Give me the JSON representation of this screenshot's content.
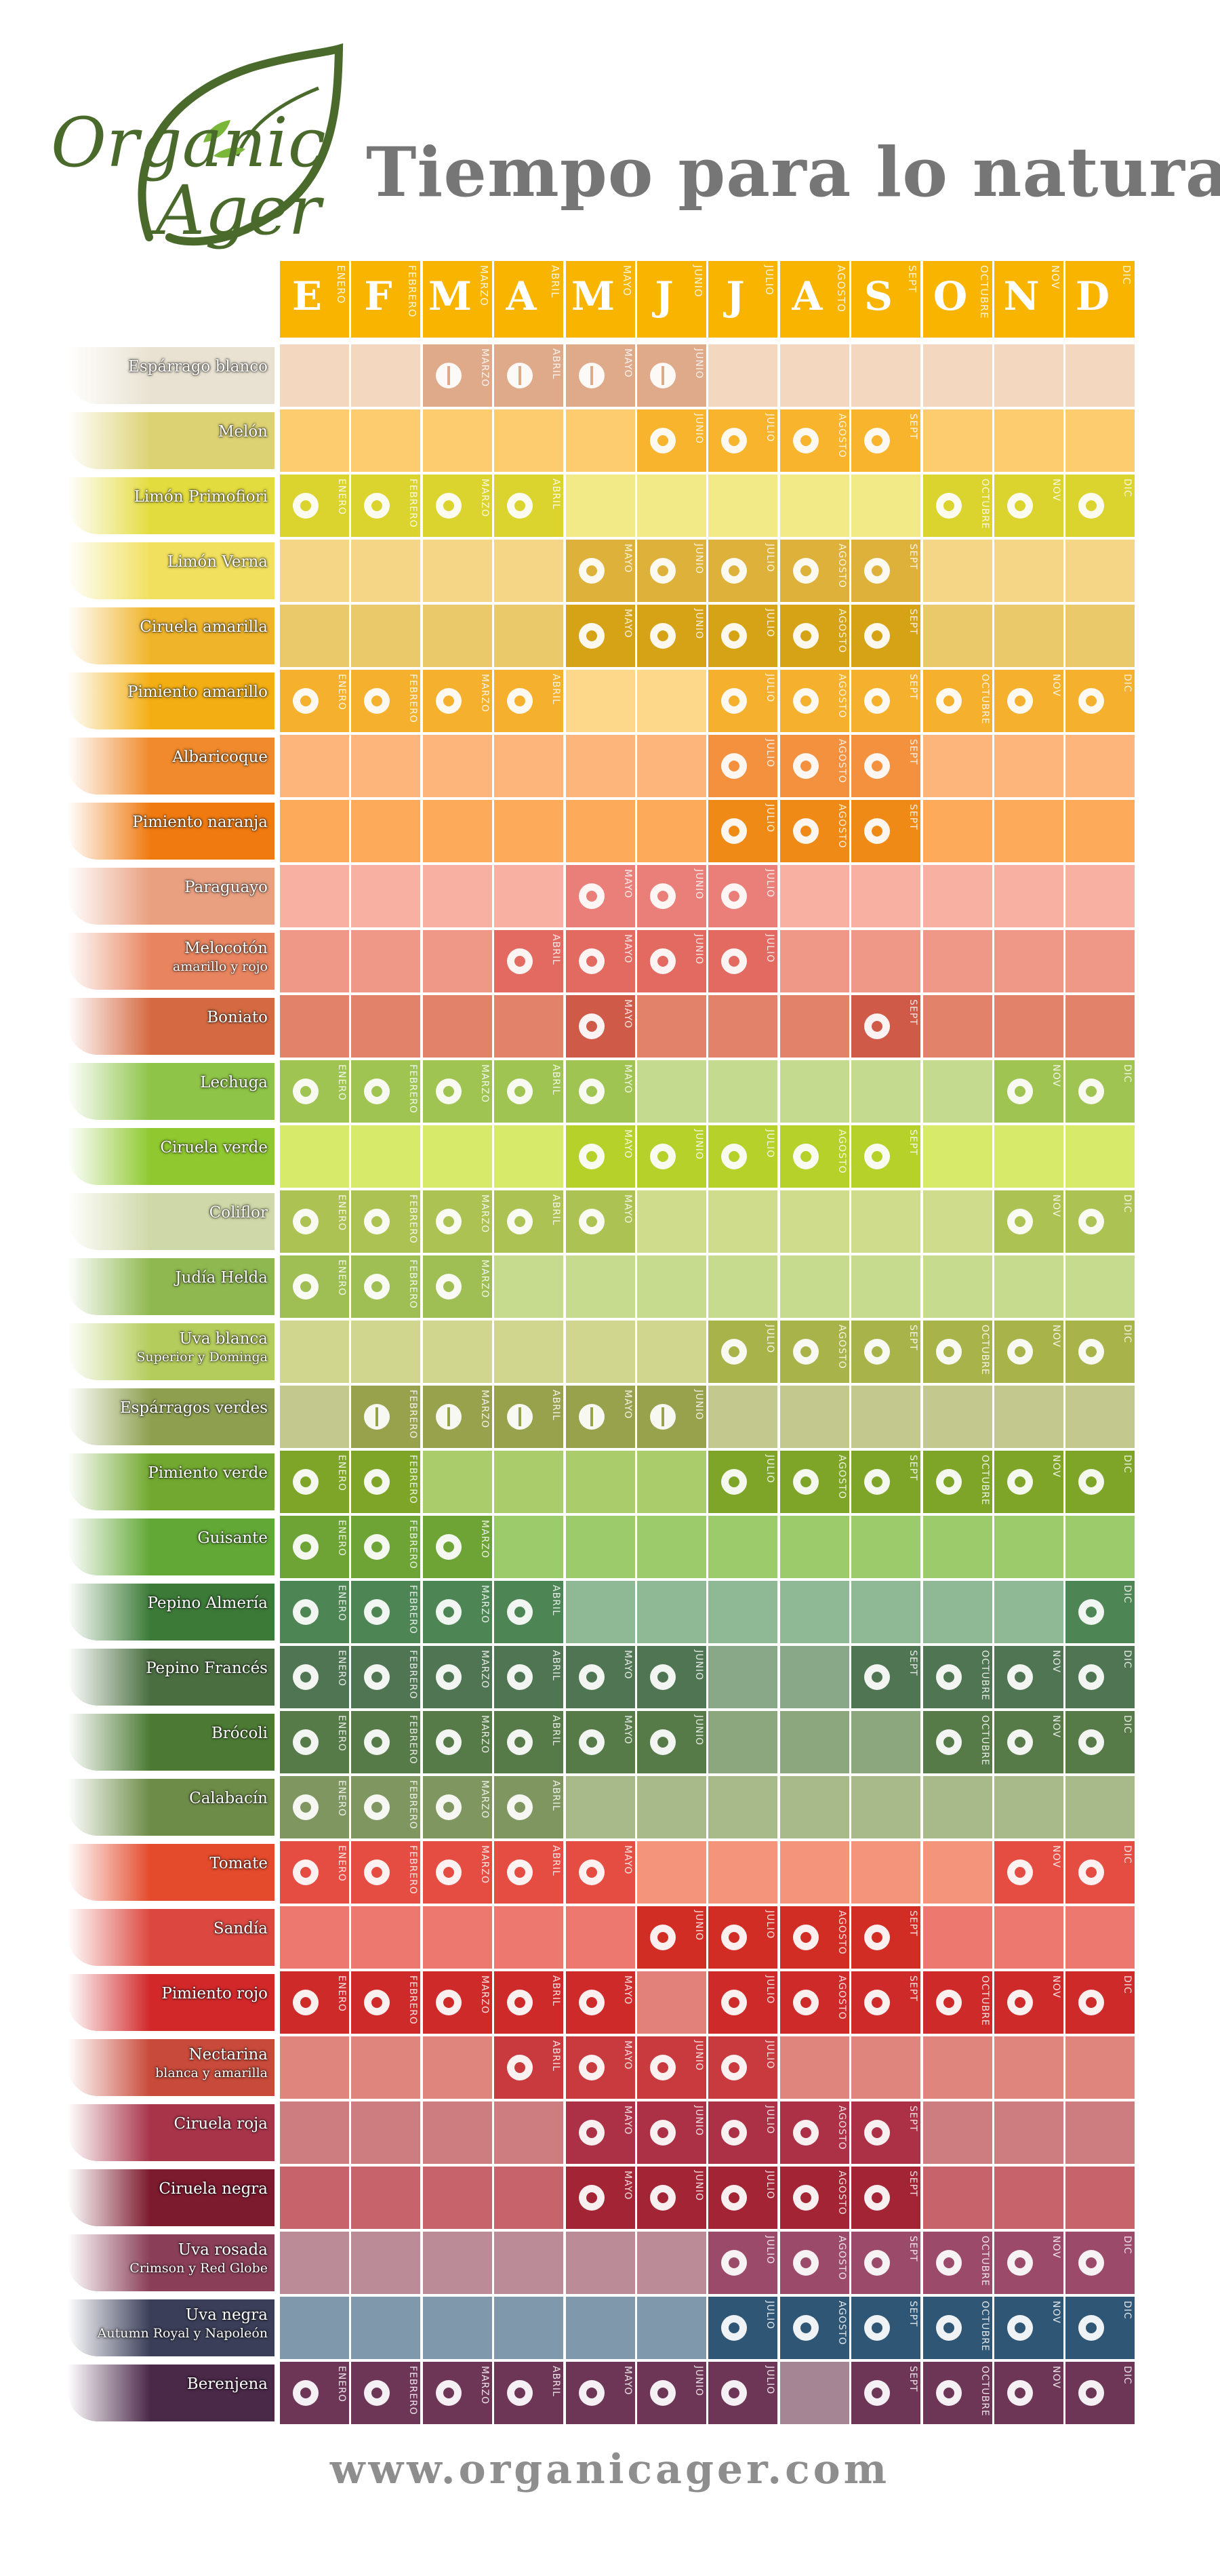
{
  "title": "Tiempo para lo natural",
  "footer": "www.organicager.com",
  "logo": {
    "word1": "Organic",
    "word2": "Ager",
    "color": "#4a6a2c"
  },
  "months": [
    {
      "letter": "E",
      "name": "ENERO"
    },
    {
      "letter": "F",
      "name": "FEBRERO"
    },
    {
      "letter": "M",
      "name": "MARZO"
    },
    {
      "letter": "A",
      "name": "ABRIL"
    },
    {
      "letter": "M",
      "name": "MAYO"
    },
    {
      "letter": "J",
      "name": "JUNIO"
    },
    {
      "letter": "J",
      "name": "JULIO"
    },
    {
      "letter": "A",
      "name": "AGOSTO"
    },
    {
      "letter": "S",
      "name": "SEPT"
    },
    {
      "letter": "O",
      "name": "OCTUBRE"
    },
    {
      "letter": "N",
      "name": "NOV"
    },
    {
      "letter": "D",
      "name": "DIC"
    }
  ],
  "produce": [
    {
      "name": "Espárrago blanco",
      "base": "#f3d8bf",
      "season": "#deaa8a",
      "months": [
        3,
        4,
        5,
        6
      ],
      "thumb": "#e9e2d2",
      "icon": "asparagus-icon"
    },
    {
      "name": "Melón",
      "base": "#fdcc6f",
      "season": "#f8b42d",
      "months": [
        6,
        7,
        8,
        9
      ],
      "thumb": "#dcd273",
      "icon": "melon-icon"
    },
    {
      "name": "Limón Primofiori",
      "base": "#f2ea86",
      "season": "#dcd42e",
      "months": [
        1,
        2,
        3,
        4,
        10,
        11,
        12
      ],
      "thumb": "#e3dc3e",
      "icon": "lemon-icon"
    },
    {
      "name": "Limón Verna",
      "base": "#f4d686",
      "season": "#deb23a",
      "months": [
        5,
        6,
        7,
        8,
        9
      ],
      "thumb": "#f1e05e",
      "icon": "lemon-icon"
    },
    {
      "name": "Ciruela amarilla",
      "base": "#e9c96a",
      "season": "#d6a317",
      "months": [
        5,
        6,
        7,
        8,
        9
      ],
      "thumb": "#f0b42a",
      "icon": "plum-icon"
    },
    {
      "name": "Pimiento amarillo",
      "base": "#fdd88b",
      "season": "#f5b12e",
      "months": [
        1,
        2,
        3,
        4,
        7,
        8,
        9,
        10,
        11,
        12
      ],
      "thumb": "#f3ae14",
      "icon": "pepper-icon"
    },
    {
      "name": "Albaricoque",
      "base": "#fdb57c",
      "season": "#f3913e",
      "months": [
        7,
        8,
        9
      ],
      "thumb": "#f08a2c",
      "icon": "apricot-icon"
    },
    {
      "name": "Pimiento naranja",
      "base": "#fdaa5a",
      "season": "#f08a16",
      "months": [
        7,
        8,
        9
      ],
      "thumb": "#f07a10",
      "icon": "pepper-icon"
    },
    {
      "name": "Paraguayo",
      "base": "#f7b0a2",
      "season": "#e97f78",
      "months": [
        5,
        6,
        7
      ],
      "thumb": "#e9a080",
      "icon": "peach-icon"
    },
    {
      "name": "Melocotón",
      "name2": "amarillo y rojo",
      "base": "#ef9887",
      "season": "#e26a61",
      "months": [
        4,
        5,
        6,
        7
      ],
      "thumb": "#e88560",
      "icon": "peach-icon"
    },
    {
      "name": "Boniato",
      "base": "#e2826b",
      "season": "#cf5a48",
      "months": [
        5,
        9
      ],
      "thumb": "#d56a42",
      "icon": "sweet-potato-icon"
    },
    {
      "name": "Lechuga",
      "base": "#c4db8f",
      "season": "#9fc452",
      "months": [
        1,
        2,
        3,
        4,
        5,
        11,
        12
      ],
      "thumb": "#8ec448",
      "icon": "lettuce-icon"
    },
    {
      "name": "Ciruela verde",
      "base": "#d7ea6a",
      "season": "#b5d12a",
      "months": [
        5,
        6,
        7,
        8,
        9
      ],
      "thumb": "#8fc92f",
      "icon": "plum-icon"
    },
    {
      "name": "Coliflor",
      "base": "#cfdc8c",
      "season": "#acc252",
      "months": [
        1,
        2,
        3,
        4,
        5,
        11,
        12
      ],
      "thumb": "#cfd8a8",
      "icon": "cauliflower-icon"
    },
    {
      "name": "Judía Helda",
      "base": "#c7db8e",
      "season": "#9fbf55",
      "months": [
        1,
        2,
        3
      ],
      "thumb": "#8fb850",
      "icon": "bean-icon"
    },
    {
      "name": "Uva blanca",
      "name2": "Superior y Dominga",
      "base": "#d1d68f",
      "season": "#a8b44a",
      "months": [
        7,
        8,
        9,
        10,
        11,
        12
      ],
      "thumb": "#b4cc5c",
      "icon": "grape-icon"
    },
    {
      "name": "Espárragos verdes",
      "base": "#c3c98e",
      "season": "#98a24d",
      "months": [
        2,
        3,
        4,
        5,
        6
      ],
      "thumb": "#8ea050",
      "icon": "asparagus-icon"
    },
    {
      "name": "Pimiento verde",
      "base": "#aacc6a",
      "season": "#7ea528",
      "months": [
        1,
        2,
        7,
        8,
        9,
        10,
        11,
        12
      ],
      "thumb": "#72a830",
      "icon": "pepper-icon"
    },
    {
      "name": "Guisante",
      "base": "#9ccb6c",
      "season": "#6ea436",
      "months": [
        1,
        2,
        3
      ],
      "thumb": "#62a836",
      "icon": "pea-icon"
    },
    {
      "name": "Pepino Almería",
      "base": "#8fb994",
      "season": "#4d8654",
      "months": [
        1,
        2,
        3,
        4,
        12
      ],
      "thumb": "#3c7a38",
      "icon": "cucumber-icon"
    },
    {
      "name": "Pepino Francés",
      "base": "#89a887",
      "season": "#4f7552",
      "months": [
        1,
        2,
        3,
        4,
        5,
        6,
        9,
        10,
        11,
        12
      ],
      "thumb": "#4a6e40",
      "icon": "cucumber-icon"
    },
    {
      "name": "Brócoli",
      "base": "#8ca77e",
      "season": "#567a48",
      "months": [
        1,
        2,
        3,
        4,
        5,
        6,
        10,
        11,
        12
      ],
      "thumb": "#4c7a34",
      "icon": "broccoli-icon"
    },
    {
      "name": "Calabacín",
      "base": "#a9ba8a",
      "season": "#7f9660",
      "months": [
        1,
        2,
        3,
        4
      ],
      "thumb": "#6d8c48",
      "icon": "zucchini-icon"
    },
    {
      "name": "Tomate",
      "base": "#f3947b",
      "season": "#e54c42",
      "months": [
        1,
        2,
        3,
        4,
        5,
        11,
        12
      ],
      "thumb": "#e44a2c",
      "icon": "tomato-icon"
    },
    {
      "name": "Sandía",
      "base": "#ec7870",
      "season": "#d22d24",
      "months": [
        6,
        7,
        8,
        9
      ],
      "thumb": "#dc4840",
      "icon": "watermelon-icon"
    },
    {
      "name": "Pimiento rojo",
      "base": "#e2817a",
      "season": "#cf2a2a",
      "months": [
        1,
        2,
        3,
        4,
        5,
        7,
        8,
        9,
        10,
        11,
        12
      ],
      "thumb": "#d2282a",
      "icon": "pepper-icon"
    },
    {
      "name": "Nectarina",
      "name2": "blanca y amarilla",
      "base": "#e0857d",
      "season": "#c93a3e",
      "months": [
        4,
        5,
        6,
        7
      ],
      "thumb": "#c84a3a",
      "icon": "nectarine-icon"
    },
    {
      "name": "Ciruela roja",
      "base": "#cd7d80",
      "season": "#ac3046",
      "months": [
        5,
        6,
        7,
        8,
        9
      ],
      "thumb": "#a8344a",
      "icon": "plum-icon"
    },
    {
      "name": "Ciruela negra",
      "base": "#c7636a",
      "season": "#a32434",
      "months": [
        5,
        6,
        7,
        8,
        9
      ],
      "thumb": "#7c1a2e",
      "icon": "plum-icon"
    },
    {
      "name": "Uva rosada",
      "name2": "Crimson y Red Globe",
      "base": "#bc8b98",
      "season": "#9b4a69",
      "months": [
        7,
        8,
        9,
        10,
        11,
        12
      ],
      "thumb": "#8a3e58",
      "icon": "grape-icon"
    },
    {
      "name": "Uva negra",
      "name2": "Autumn Royal y Napoleón",
      "base": "#7f98ab",
      "season": "#2f5674",
      "months": [
        7,
        8,
        9,
        10,
        11,
        12
      ],
      "thumb": "#3a3e58",
      "icon": "grape-icon"
    },
    {
      "name": "Berenjena",
      "base": "#a58494",
      "season": "#6e3656",
      "months": [
        1,
        2,
        3,
        4,
        5,
        6,
        7,
        9,
        10,
        11,
        12
      ],
      "thumb": "#4a2848",
      "icon": "eggplant-icon"
    }
  ]
}
